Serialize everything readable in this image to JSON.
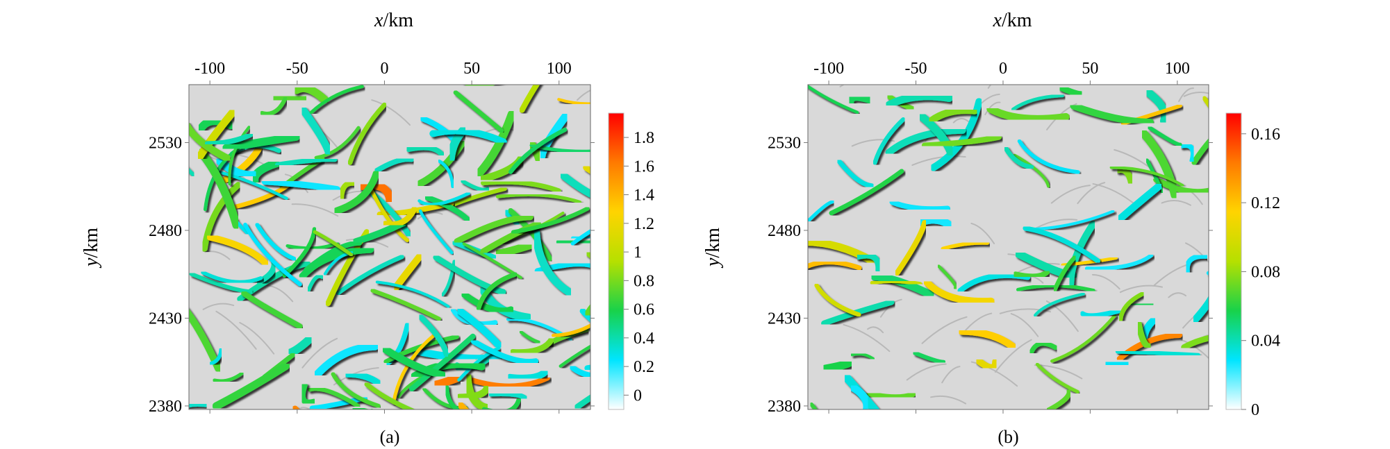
{
  "chart_data": [
    {
      "type": "heatmap",
      "caption": "(a)",
      "xlabel_var": "x",
      "xlabel_unit": "/km",
      "ylabel_var": "y",
      "ylabel_unit": "/km",
      "xlim": [
        -112,
        118
      ],
      "ylim": [
        2378,
        2563
      ],
      "x_ticks": [
        -100,
        -50,
        0,
        50,
        100
      ],
      "x_tick_labels": [
        "-100",
        "-50",
        "0",
        "50",
        "100"
      ],
      "y_ticks": [
        2530,
        2480,
        2430,
        2380
      ],
      "y_tick_labels": [
        "2530",
        "2480",
        "2430",
        "2380"
      ],
      "colorbar": {
        "range": [
          -0.1,
          1.97
        ],
        "ticks": [
          0,
          0.2,
          0.4,
          0.6,
          0.8,
          1,
          1.2,
          1.4,
          1.6,
          1.8
        ],
        "tick_labels": [
          "0",
          "0.2",
          "0.4",
          "0.6",
          "0.8",
          "1",
          "1.2",
          "1.4",
          "1.6",
          "1.8"
        ],
        "colors": [
          "#ffffff",
          "#00e5ff",
          "#18d24a",
          "#b6e000",
          "#ffd400",
          "#ff7a00",
          "#ff0000"
        ]
      },
      "field": {
        "seed": 11,
        "density": 0.85,
        "texture": "dense curvilinear anomaly ridges"
      }
    },
    {
      "type": "heatmap",
      "caption": "(b)",
      "xlabel_var": "x",
      "xlabel_unit": "/km",
      "ylabel_var": "y",
      "ylabel_unit": "/km",
      "xlim": [
        -112,
        118
      ],
      "ylim": [
        2378,
        2563
      ],
      "x_ticks": [
        -100,
        -50,
        0,
        50,
        100
      ],
      "x_tick_labels": [
        "-100",
        "-50",
        "0",
        "50",
        "100"
      ],
      "y_ticks": [
        2530,
        2480,
        2430,
        2380
      ],
      "y_tick_labels": [
        "2530",
        "2480",
        "2430",
        "2380"
      ],
      "colorbar": {
        "range": [
          0,
          0.172
        ],
        "ticks": [
          0,
          0.04,
          0.08,
          0.12,
          0.16
        ],
        "tick_labels": [
          "0",
          "0.04",
          "0.08",
          "0.12",
          "0.16"
        ],
        "colors": [
          "#ffffff",
          "#00e5ff",
          "#18d24a",
          "#b6e000",
          "#ffd400",
          "#ff7a00",
          "#ff0000"
        ]
      },
      "field": {
        "seed": 29,
        "density": 0.45,
        "texture": "sparse curvilinear anomaly ridges"
      }
    }
  ]
}
